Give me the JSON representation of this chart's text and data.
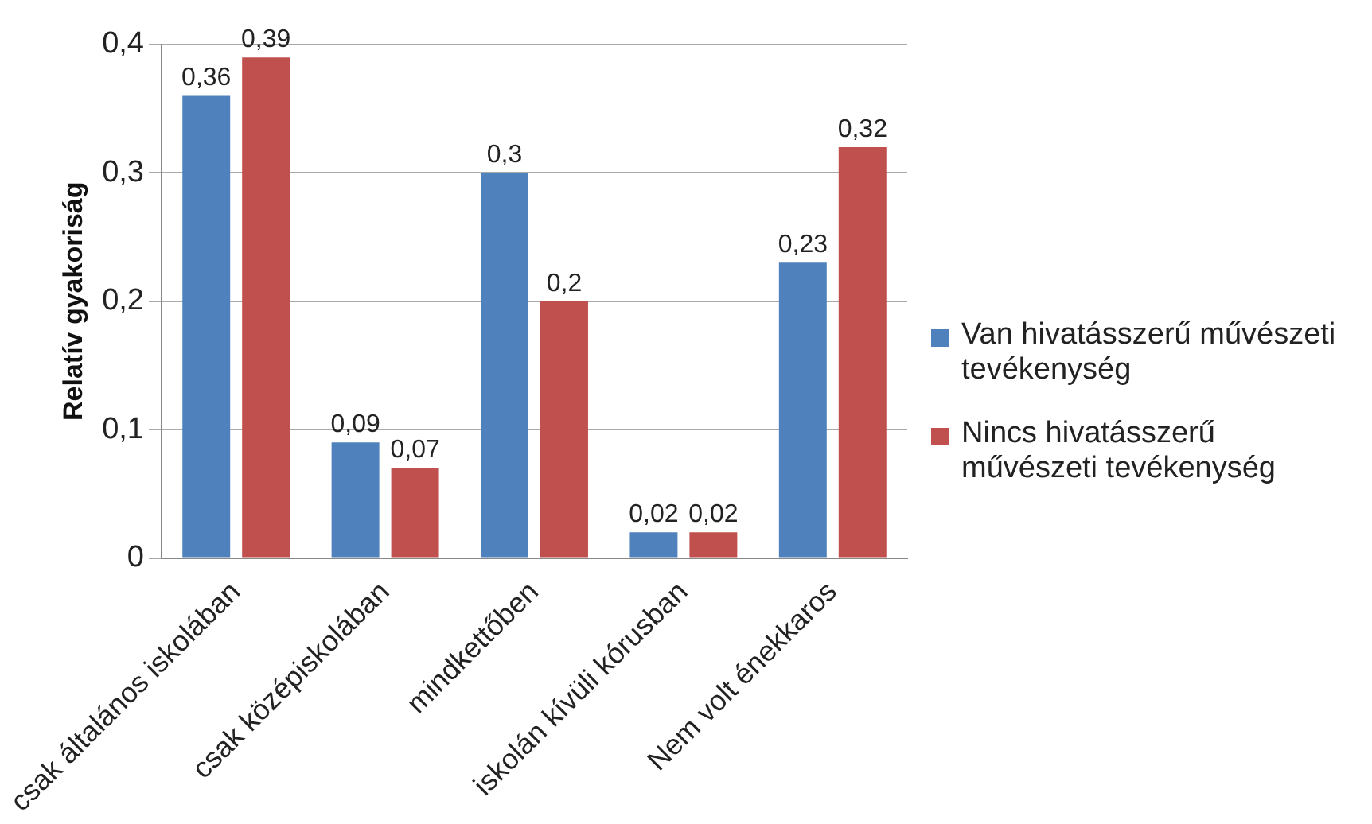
{
  "chart_data": {
    "type": "bar",
    "ylabel": "Relatív gyakoriság",
    "categories": [
      "csak általános iskolában",
      "csak középiskolában",
      "mindkettőben",
      "iskolán kívüli kórusban",
      "Nem volt énekkaros"
    ],
    "series": [
      {
        "name": "Van hivatásszerű művészeti tevékenység",
        "color": "#4f81bd",
        "values": [
          0.36,
          0.09,
          0.3,
          0.02,
          0.23
        ],
        "value_labels": [
          "0,36",
          "0,09",
          "0,3",
          "0,02",
          "0,23"
        ]
      },
      {
        "name": "Nincs hivatásszerű művészeti tevékenység",
        "color": "#c0504d",
        "values": [
          0.39,
          0.07,
          0.2,
          0.02,
          0.32
        ],
        "value_labels": [
          "0,39",
          "0,07",
          "0,2",
          "0,02",
          "0,32"
        ]
      }
    ],
    "ylim": [
      0,
      0.4
    ],
    "yticks": [
      {
        "value": 0,
        "label": "0"
      },
      {
        "value": 0.1,
        "label": "0,1"
      },
      {
        "value": 0.2,
        "label": "0,2"
      },
      {
        "value": 0.3,
        "label": "0,3"
      },
      {
        "value": 0.4,
        "label": "0,4"
      }
    ],
    "grid": "y",
    "legend": "right"
  }
}
